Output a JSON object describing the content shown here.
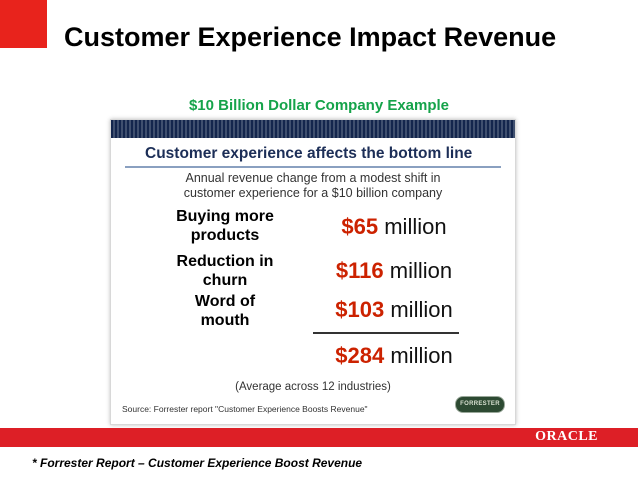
{
  "slide": {
    "title": "Customer Experience Impact Revenue",
    "subtitle": "$10 Billion Dollar Company Example"
  },
  "card": {
    "heading": "Customer experience affects the bottom line",
    "description_lines": [
      "Annual revenue change from a modest shift in",
      "customer experience for a $10 billion company"
    ],
    "metrics": [
      {
        "label_lines": [
          "Buying more",
          "products"
        ],
        "amount": "$65",
        "unit": "million"
      },
      {
        "label_lines": [
          "Reduction in",
          "churn"
        ],
        "amount": "$116",
        "unit": "million"
      },
      {
        "label_lines": [
          "Word of",
          "mouth"
        ],
        "amount": "$103",
        "unit": "million"
      }
    ],
    "total": {
      "amount": "$284",
      "unit": "million"
    },
    "average_note": "(Average across 12 industries)",
    "source": "Source: Forrester report \"Customer Experience Boosts Revenue\"",
    "logo_text": "FORRESTER"
  },
  "footer": {
    "brand": "ORACLE",
    "footnote": "* Forrester Report – Customer Experience Boost Revenue"
  },
  "colors": {
    "brand_red": "#e8231c",
    "subtitle_green": "#15a34a",
    "heading_navy": "#1c2e57",
    "amount_red": "#cc2200"
  }
}
